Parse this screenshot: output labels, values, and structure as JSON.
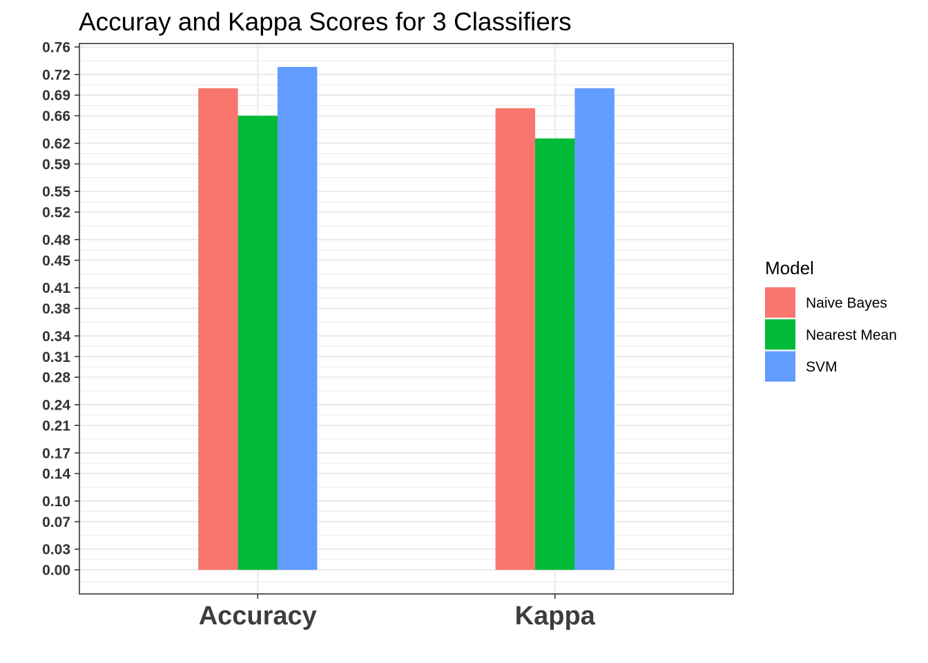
{
  "chart_data": {
    "type": "bar",
    "title": "Accuray and Kappa Scores for 3 Classifiers",
    "xlabel": "",
    "ylabel": "",
    "categories": [
      "Accuracy",
      "Kappa"
    ],
    "series": [
      {
        "name": "Naive Bayes",
        "color": "#F8766D",
        "values": [
          0.7,
          0.671
        ]
      },
      {
        "name": "Nearest Mean",
        "color": "#00BA38",
        "values": [
          0.66,
          0.627
        ]
      },
      {
        "name": "SVM",
        "color": "#619CFF",
        "values": [
          0.731,
          0.7
        ]
      }
    ],
    "y_ticks": [
      "0.00",
      "0.03",
      "0.07",
      "0.10",
      "0.14",
      "0.17",
      "0.21",
      "0.24",
      "0.28",
      "0.31",
      "0.34",
      "0.38",
      "0.41",
      "0.45",
      "0.48",
      "0.52",
      "0.55",
      "0.59",
      "0.62",
      "0.66",
      "0.69",
      "0.72",
      "0.76"
    ],
    "ylim": [
      -0.035,
      0.765
    ],
    "grid": true,
    "legend": {
      "title": "Model",
      "position": "right"
    },
    "colors": {
      "panel_border": "#333333",
      "grid": "#ebebeb",
      "axis_text": "#333333"
    }
  }
}
